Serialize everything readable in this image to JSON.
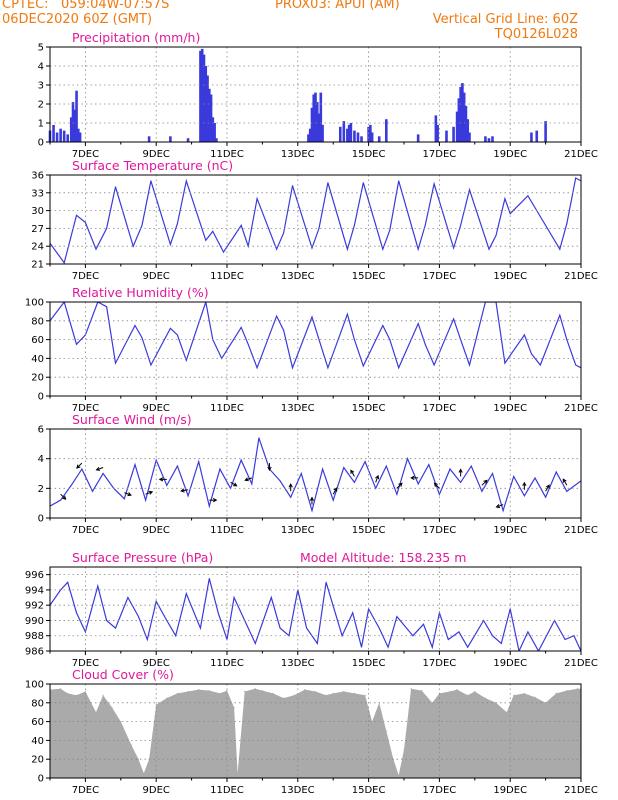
{
  "header": {
    "org": "CPTEC:",
    "location": "059:04W-07:57S",
    "station": "PROX03: APUI (AM)",
    "run": "06DEC2020 60Z (GMT)",
    "grid_note": "Vertical Grid Line: 60Z",
    "code": "TQ0126L028"
  },
  "colors": {
    "line": "#3a3adc",
    "title": "#e0189a",
    "header": "#f07a10",
    "cloud": "#aaaaaa",
    "grid": "#888888"
  },
  "x_ticks": [
    "7DEC",
    "9DEC",
    "11DEC",
    "13DEC",
    "15DEC",
    "17DEC",
    "19DEC",
    "21DEC"
  ],
  "chart_data": [
    {
      "type": "bar",
      "title": "Precipitation (mm/h)",
      "ylim": [
        0,
        5
      ],
      "yticks": [
        0,
        1,
        2,
        3,
        4,
        5
      ],
      "x_unit": "day of December 2020",
      "x": [
        6.0,
        6.1,
        6.2,
        6.3,
        6.4,
        6.5,
        6.6,
        6.65,
        6.7,
        6.75,
        6.8,
        6.85,
        8.8,
        9.4,
        9.9,
        10.25,
        10.3,
        10.35,
        10.4,
        10.45,
        10.5,
        10.55,
        10.6,
        10.65,
        10.7,
        13.3,
        13.35,
        13.4,
        13.45,
        13.5,
        13.55,
        13.6,
        13.65,
        13.7,
        14.2,
        14.3,
        14.4,
        14.45,
        14.5,
        14.6,
        14.7,
        14.8,
        15.0,
        15.05,
        15.1,
        15.3,
        15.5,
        16.4,
        16.9,
        16.95,
        17.2,
        17.4,
        17.5,
        17.55,
        17.6,
        17.65,
        17.7,
        17.75,
        17.8,
        17.85,
        18.3,
        18.4,
        18.5,
        19.6,
        19.75,
        20.0
      ],
      "values": [
        0.6,
        0.9,
        0.5,
        0.7,
        0.6,
        0.4,
        1.3,
        2.1,
        1.7,
        2.7,
        0.7,
        0.5,
        0.3,
        0.3,
        0.2,
        4.8,
        4.9,
        4.6,
        4.0,
        3.5,
        2.8,
        2.5,
        1.3,
        1.0,
        0.2,
        0.4,
        0.7,
        1.8,
        2.5,
        2.6,
        2.1,
        1.5,
        2.6,
        0.9,
        0.8,
        1.1,
        0.7,
        0.9,
        1.0,
        0.6,
        0.5,
        0.3,
        0.8,
        0.9,
        0.5,
        0.3,
        1.2,
        0.4,
        1.4,
        0.9,
        0.6,
        0.8,
        1.6,
        2.3,
        2.9,
        3.1,
        2.6,
        1.9,
        1.2,
        0.5,
        0.3,
        0.2,
        0.3,
        0.5,
        0.6,
        1.1
      ]
    },
    {
      "type": "line",
      "title": "Surface Temperature (nC)",
      "ylim": [
        21,
        36
      ],
      "yticks": [
        21,
        24,
        27,
        30,
        33,
        36
      ],
      "x": [
        6.0,
        6.4,
        6.75,
        7.0,
        7.3,
        7.6,
        7.85,
        8.35,
        8.6,
        8.85,
        9.4,
        9.6,
        9.85,
        10.4,
        10.6,
        10.9,
        11.4,
        11.6,
        11.85,
        12.4,
        12.6,
        12.85,
        13.4,
        13.6,
        13.85,
        14.4,
        14.6,
        14.85,
        15.4,
        15.6,
        15.85,
        16.4,
        16.6,
        16.85,
        17.4,
        17.6,
        17.85,
        18.4,
        18.6,
        18.85,
        19.0,
        19.5,
        19.85,
        20.4,
        20.6,
        20.85,
        21.0
      ],
      "values": [
        24.5,
        21.2,
        29.2,
        28.0,
        23.5,
        27.0,
        34.0,
        24.0,
        27.5,
        35.0,
        24.3,
        27.8,
        35.0,
        25.0,
        26.5,
        23.0,
        27.5,
        24.0,
        32.0,
        23.5,
        26.2,
        34.2,
        23.7,
        27.0,
        34.7,
        23.5,
        27.5,
        34.7,
        23.5,
        26.7,
        35.0,
        23.5,
        27.5,
        34.5,
        23.7,
        27.5,
        33.5,
        23.5,
        25.8,
        32.0,
        29.5,
        32.5,
        29.0,
        23.5,
        27.8,
        35.5,
        35.0
      ]
    },
    {
      "type": "line",
      "title": "Relative Humidity (%)",
      "ylim": [
        0,
        100
      ],
      "yticks": [
        0,
        20,
        40,
        60,
        80,
        100
      ],
      "x": [
        6.0,
        6.4,
        6.75,
        7.0,
        7.35,
        7.6,
        7.85,
        8.4,
        8.6,
        8.85,
        9.4,
        9.6,
        9.85,
        10.4,
        10.6,
        10.85,
        11.4,
        11.6,
        11.85,
        12.4,
        12.6,
        12.85,
        13.4,
        13.6,
        13.85,
        14.4,
        14.6,
        14.85,
        15.4,
        15.6,
        15.85,
        16.4,
        16.6,
        16.85,
        17.4,
        17.6,
        17.85,
        18.3,
        18.6,
        18.85,
        19.4,
        19.6,
        19.85,
        20.4,
        20.6,
        20.85,
        21.0
      ],
      "values": [
        80,
        100,
        55,
        65,
        100,
        95,
        35,
        75,
        62,
        33,
        72,
        65,
        38,
        100,
        60,
        40,
        73,
        55,
        30,
        85,
        70,
        30,
        84,
        60,
        30,
        87,
        60,
        32,
        75,
        60,
        30,
        77,
        55,
        33,
        82,
        60,
        33,
        100,
        100,
        35,
        65,
        45,
        33,
        86,
        60,
        33,
        30
      ]
    },
    {
      "type": "line",
      "title": "Surface Wind (m/s)",
      "ylim": [
        0,
        6
      ],
      "yticks": [
        0,
        2,
        4,
        6
      ],
      "x": [
        6.0,
        6.3,
        6.6,
        6.9,
        7.2,
        7.5,
        7.8,
        8.1,
        8.4,
        8.7,
        9.0,
        9.3,
        9.6,
        9.9,
        10.2,
        10.5,
        10.8,
        11.1,
        11.4,
        11.7,
        11.9,
        12.2,
        12.5,
        12.8,
        13.1,
        13.4,
        13.7,
        14.0,
        14.3,
        14.6,
        14.9,
        15.2,
        15.5,
        15.8,
        16.1,
        16.4,
        16.7,
        17.0,
        17.3,
        17.6,
        17.9,
        18.2,
        18.5,
        18.8,
        19.1,
        19.4,
        19.7,
        20.0,
        20.3,
        20.6,
        21.0
      ],
      "values": [
        0.8,
        1.2,
        2.2,
        3.3,
        1.8,
        3.0,
        2.0,
        1.3,
        3.6,
        1.2,
        3.9,
        2.2,
        3.5,
        1.5,
        3.8,
        0.8,
        3.3,
        2.0,
        3.9,
        2.3,
        5.4,
        3.3,
        2.5,
        1.4,
        3.0,
        0.5,
        3.3,
        1.2,
        3.4,
        2.4,
        3.8,
        2.0,
        3.5,
        1.6,
        4.0,
        2.3,
        3.6,
        1.6,
        3.3,
        2.4,
        3.5,
        1.8,
        3.0,
        0.5,
        2.8,
        1.5,
        2.7,
        1.4,
        3.1,
        1.8,
        2.5
      ]
    },
    {
      "type": "line",
      "title": "Surface Pressure (hPa)",
      "annotation": "Model Altitude: 158.235 m",
      "ylim": [
        986,
        997
      ],
      "yticks": [
        986,
        988,
        990,
        992,
        994,
        996
      ],
      "x": [
        6.0,
        6.3,
        6.5,
        6.75,
        7.0,
        7.35,
        7.6,
        7.85,
        8.2,
        8.5,
        8.75,
        9.0,
        9.3,
        9.55,
        9.85,
        10.25,
        10.5,
        10.75,
        11.0,
        11.2,
        11.5,
        11.8,
        12.25,
        12.5,
        12.75,
        13.0,
        13.25,
        13.55,
        13.8,
        14.25,
        14.55,
        14.8,
        15.0,
        15.3,
        15.55,
        15.8,
        16.25,
        16.55,
        16.8,
        17.0,
        17.25,
        17.55,
        17.8,
        18.25,
        18.5,
        18.75,
        19.0,
        19.25,
        19.5,
        19.8,
        20.25,
        20.55,
        20.8,
        21.0
      ],
      "values": [
        992.0,
        994.0,
        995.0,
        991.0,
        988.5,
        994.5,
        990.0,
        989.0,
        993.0,
        990.5,
        987.5,
        992.5,
        990.0,
        988.0,
        993.5,
        989.0,
        995.5,
        991.0,
        987.5,
        993.0,
        990.0,
        987.0,
        993.0,
        989.0,
        988.0,
        994.0,
        989.0,
        987.0,
        995.0,
        988.0,
        991.0,
        986.5,
        991.5,
        989.0,
        986.5,
        990.5,
        988.0,
        989.5,
        986.5,
        991.0,
        987.5,
        988.5,
        986.5,
        990.0,
        988.0,
        987.0,
        991.5,
        986.0,
        988.5,
        986.0,
        990.0,
        987.5,
        988.0,
        986.0
      ]
    },
    {
      "type": "area",
      "title": "Cloud Cover (%)",
      "ylim": [
        0,
        100
      ],
      "yticks": [
        0,
        20,
        40,
        60,
        80,
        100
      ],
      "x": [
        6.0,
        6.3,
        6.5,
        6.75,
        7.0,
        7.3,
        7.5,
        7.75,
        8.0,
        8.3,
        8.5,
        8.65,
        8.8,
        9.0,
        9.3,
        9.6,
        9.9,
        10.2,
        10.5,
        10.8,
        11.0,
        11.2,
        11.3,
        11.5,
        11.8,
        12.0,
        12.3,
        12.6,
        12.9,
        13.2,
        13.5,
        13.8,
        14.0,
        14.3,
        14.6,
        14.9,
        15.1,
        15.3,
        15.5,
        15.7,
        15.85,
        16.0,
        16.2,
        16.5,
        16.8,
        17.0,
        17.3,
        17.5,
        17.8,
        18.0,
        18.3,
        18.6,
        18.9,
        19.1,
        19.4,
        19.7,
        20.0,
        20.3,
        20.6,
        20.9,
        21.0
      ],
      "values": [
        94,
        95,
        90,
        88,
        92,
        70,
        88,
        75,
        60,
        35,
        20,
        5,
        20,
        78,
        85,
        90,
        92,
        94,
        93,
        90,
        93,
        75,
        5,
        92,
        95,
        93,
        90,
        85,
        88,
        94,
        92,
        88,
        90,
        92,
        90,
        88,
        60,
        80,
        50,
        20,
        3,
        30,
        95,
        93,
        80,
        90,
        92,
        94,
        88,
        92,
        85,
        80,
        70,
        88,
        90,
        86,
        80,
        90,
        93,
        95,
        95
      ]
    }
  ]
}
